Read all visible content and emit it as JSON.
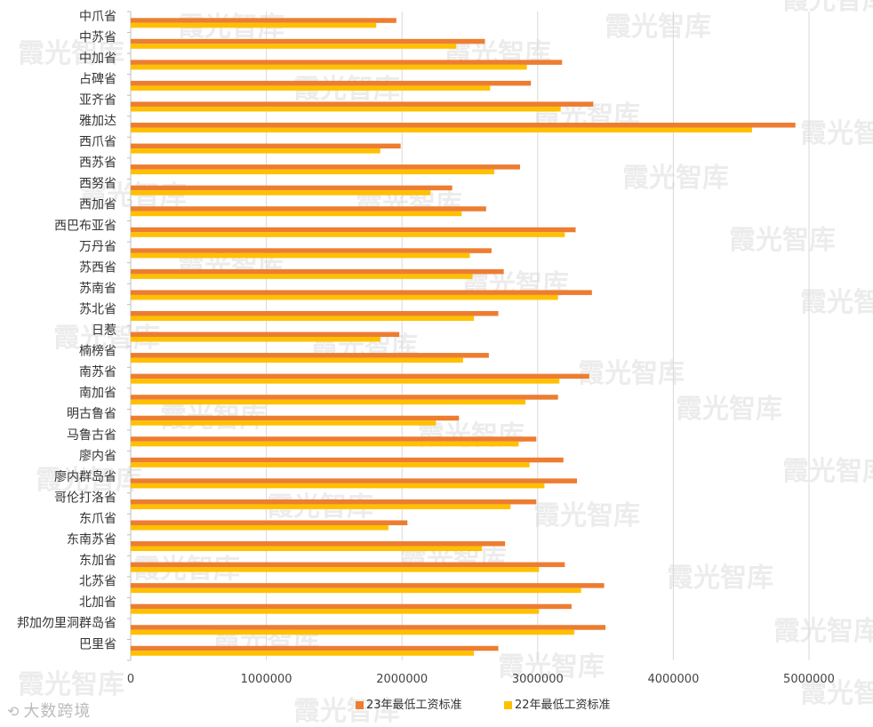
{
  "chart_data": {
    "type": "bar",
    "orientation": "horizontal",
    "categories": [
      "中爪省",
      "中苏省",
      "中加省",
      "占碑省",
      "亚齐省",
      "雅加达",
      "西爪省",
      "西苏省",
      "西努省",
      "西加省",
      "西巴布亚省",
      "万丹省",
      "苏西省",
      "苏南省",
      "苏北省",
      "日惹",
      "楠榜省",
      "南苏省",
      "南加省",
      "明古鲁省",
      "马鲁古省",
      "廖内省",
      "廖内群岛省",
      "哥伦打洛省",
      "东爪省",
      "东南苏省",
      "东加省",
      "北苏省",
      "北加省",
      "邦加勿里洞群岛省",
      "巴里省"
    ],
    "series": [
      {
        "name": "23年最低工资标准",
        "color": "#ED7D31",
        "values": [
          1958000,
          2610000,
          3180000,
          2950000,
          3410000,
          4900000,
          1990000,
          2870000,
          2370000,
          2620000,
          3280000,
          2660000,
          2750000,
          3400000,
          2710000,
          1980000,
          2640000,
          3380000,
          3150000,
          2420000,
          2990000,
          3190000,
          3290000,
          2990000,
          2040000,
          2760000,
          3200000,
          3490000,
          3250000,
          3500000,
          2710000
        ]
      },
      {
        "name": "22年最低工资标准",
        "color": "#FFC000",
        "values": [
          1810000,
          2400000,
          2920000,
          2650000,
          3170000,
          4580000,
          1840000,
          2680000,
          2210000,
          2440000,
          3200000,
          2500000,
          2520000,
          3150000,
          2530000,
          1840000,
          2450000,
          3160000,
          2910000,
          2250000,
          2860000,
          2940000,
          3050000,
          2800000,
          1900000,
          2590000,
          3010000,
          3320000,
          3010000,
          3270000,
          2530000
        ]
      }
    ],
    "xlim": [
      0,
      5000000
    ],
    "ticks": [
      "0",
      "1000000",
      "2000000",
      "3000000",
      "4000000",
      "5000000"
    ],
    "grid": true,
    "legend_position": "bottom"
  },
  "watermark": "霞光智库",
  "brand": {
    "logo": "大数跨境"
  }
}
